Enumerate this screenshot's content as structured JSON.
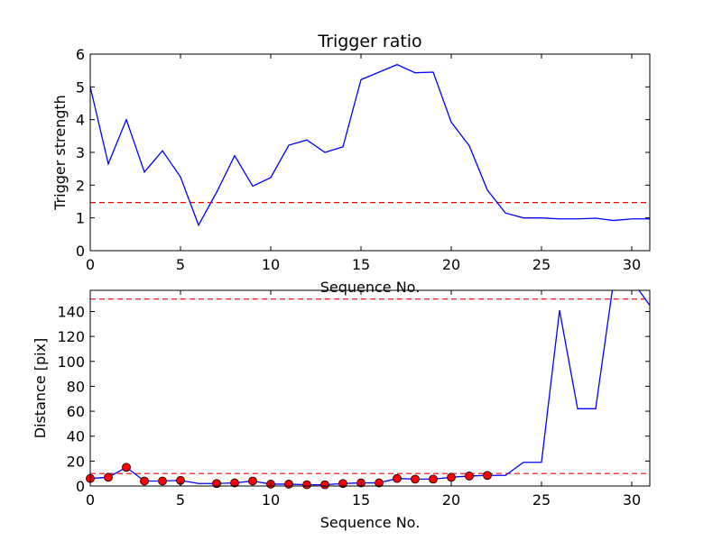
{
  "chart_data": [
    {
      "type": "line",
      "title": "Trigger ratio",
      "xlabel": "Sequence No.",
      "ylabel": "Trigger strength",
      "xlim": [
        0,
        31
      ],
      "ylim": [
        0,
        6
      ],
      "xticks": [
        0,
        5,
        10,
        15,
        20,
        25,
        30
      ],
      "yticks": [
        0,
        1,
        2,
        3,
        4,
        5,
        6
      ],
      "grid": false,
      "series": [
        {
          "color": "#0000ff",
          "style": "solid",
          "x": [
            0,
            1,
            2,
            3,
            4,
            5,
            6,
            7,
            8,
            9,
            10,
            11,
            12,
            13,
            14,
            15,
            16,
            17,
            18,
            19,
            20,
            21,
            22,
            23,
            24,
            25,
            26,
            27,
            28,
            29,
            30,
            31
          ],
          "y": [
            5.0,
            2.65,
            4.0,
            2.4,
            3.05,
            2.25,
            0.78,
            1.78,
            2.9,
            1.97,
            2.23,
            3.22,
            3.38,
            3.0,
            3.17,
            5.22,
            5.45,
            5.68,
            5.43,
            5.45,
            3.92,
            3.2,
            1.85,
            1.15,
            1.0,
            1.0,
            0.97,
            0.97,
            0.99,
            0.92,
            0.97,
            0.97
          ]
        }
      ],
      "hlines": [
        {
          "y": 1.47,
          "color": "#ff0000",
          "style": "dashed"
        }
      ]
    },
    {
      "type": "line",
      "title": "",
      "xlabel": "Sequence No.",
      "ylabel": "Distance [pix]",
      "xlim": [
        0,
        31
      ],
      "ylim": [
        0,
        157
      ],
      "xticks": [
        0,
        5,
        10,
        15,
        20,
        25,
        30
      ],
      "yticks": [
        0,
        20,
        40,
        60,
        80,
        100,
        120,
        140
      ],
      "grid": false,
      "series": [
        {
          "color": "#0000ff",
          "style": "solid",
          "x": [
            0,
            1,
            2,
            3,
            4,
            5,
            6,
            7,
            8,
            9,
            10,
            11,
            12,
            13,
            14,
            15,
            16,
            17,
            18,
            19,
            20,
            21,
            22,
            23,
            24,
            25,
            26,
            27,
            28,
            29,
            30,
            31
          ],
          "y": [
            6,
            7,
            15,
            4,
            4,
            4.5,
            2,
            2,
            2.5,
            4,
            1.5,
            1.5,
            1,
            1,
            2,
            2.5,
            2.5,
            6,
            5.5,
            5.5,
            7,
            8,
            8.5,
            8.5,
            19,
            19,
            141,
            62,
            62,
            165,
            165,
            145
          ]
        }
      ],
      "markers": {
        "color": "#ff0000",
        "edge": "#000000",
        "x": [
          0,
          1,
          2,
          3,
          4,
          5,
          7,
          8,
          9,
          10,
          11,
          12,
          13,
          14,
          15,
          16,
          17,
          18,
          19,
          20,
          21,
          22
        ],
        "y": [
          6,
          7,
          15,
          4,
          4,
          4.5,
          2,
          2.5,
          4,
          1.5,
          1.5,
          1,
          1,
          2,
          2.5,
          2.5,
          6,
          5.5,
          5.5,
          7,
          8,
          8.5
        ]
      },
      "hlines": [
        {
          "y": 150,
          "color": "#ff0000",
          "style": "dashed"
        },
        {
          "y": 10,
          "color": "#ff0000",
          "style": "dashed"
        }
      ]
    }
  ]
}
